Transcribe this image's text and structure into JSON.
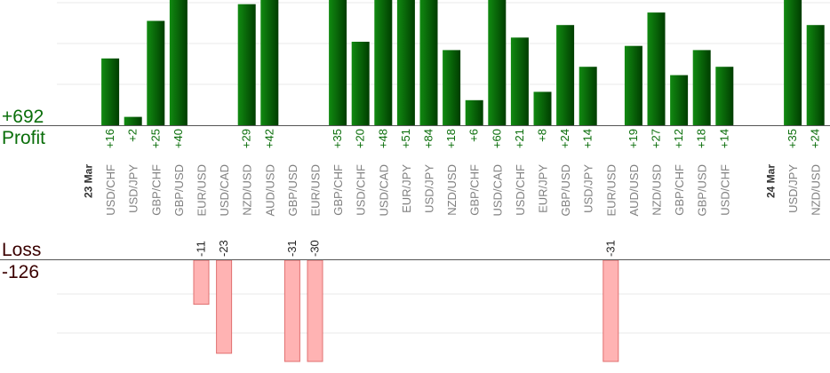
{
  "summary": {
    "profit_total": "+692",
    "profit_label": "Profit",
    "loss_label": "Loss",
    "loss_total": "-126"
  },
  "colors": {
    "profit_dark": "#003d00",
    "profit_light": "#118a11",
    "profit_text": "#0a6e0a",
    "loss_fill": "#ffb3b3",
    "loss_stroke": "#e07070",
    "loss_text": "#3a0000",
    "axis": "#555555",
    "grid": "#e8e8e8",
    "tick_text": "#808080",
    "date_text": "#333333"
  },
  "chart_data": {
    "type": "bar",
    "grid": true,
    "date_markers": [
      {
        "index": 0,
        "label": "23 Mar"
      },
      {
        "index": 30,
        "label": "24 Mar"
      }
    ],
    "categories": [
      "23 Mar",
      "USD/CHF",
      "USD/JPY",
      "GBP/CHF",
      "GBP/USD",
      "EUR/USD",
      "USD/CAD",
      "NZD/USD",
      "AUD/USD",
      "GBP/USD",
      "EUR/USD",
      "GBP/CHF",
      "USD/CHF",
      "USD/CAD",
      "EUR/JPY",
      "USD/JPY",
      "NZD/USD",
      "GBP/CHF",
      "USD/CAD",
      "USD/CHF",
      "EUR/JPY",
      "GBP/USD",
      "USD/JPY",
      "EUR/USD",
      "AUD/USD",
      "NZD/USD",
      "GBP/CHF",
      "GBP/USD",
      "USD/CHF",
      "",
      "24 Mar",
      "USD/JPY",
      "NZD/USD"
    ],
    "values": [
      null,
      16,
      2,
      25,
      40,
      -11,
      -23,
      29,
      42,
      -31,
      -30,
      35,
      20,
      48,
      51,
      84,
      18,
      6,
      60,
      21,
      8,
      24,
      14,
      -31,
      19,
      27,
      12,
      18,
      14,
      null,
      null,
      35,
      24
    ],
    "value_labels": [
      "",
      "+16",
      "+2",
      "+25",
      "+40",
      "-11",
      "-23",
      "+29",
      "+42",
      "-31",
      "-30",
      "+35",
      "+20",
      "+48",
      "+51",
      "+84",
      "+18",
      "+6",
      "+60",
      "+21",
      "+8",
      "+24",
      "+14",
      "-31",
      "+19",
      "+27",
      "+12",
      "+18",
      "+14",
      "",
      "",
      "+35",
      "+24"
    ],
    "profit_axis_max": 30,
    "loss_axis_max": 25
  }
}
